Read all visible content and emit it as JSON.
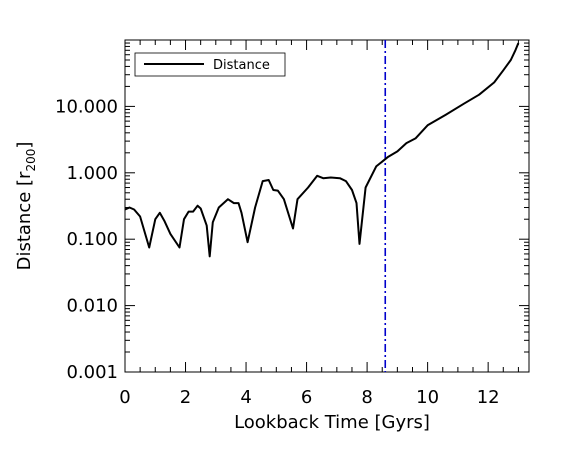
{
  "chart_data": {
    "type": "line",
    "xlabel": "Lookback Time [Gyrs]",
    "ylabel": {
      "main": "Distance [r",
      "sub": "200",
      "close": "]"
    },
    "xlim": [
      0,
      13.35
    ],
    "ylim": [
      0.001,
      100
    ],
    "yscale": "log",
    "xticks": [
      0,
      2,
      4,
      6,
      8,
      10,
      12
    ],
    "xtick_labels": [
      "0",
      "2",
      "4",
      "6",
      "8",
      "10",
      "12"
    ],
    "yticks": [
      0.001,
      0.01,
      0.1,
      1,
      10
    ],
    "ytick_labels": [
      "0.001",
      "0.010",
      "0.100",
      "1.000",
      "10.000"
    ],
    "grid": false,
    "legend": {
      "position": "top-left",
      "entries": [
        "Distance"
      ]
    },
    "series": [
      {
        "name": "Distance",
        "color": "#000000",
        "style": "solid",
        "x": [
          0.0,
          0.15,
          0.3,
          0.5,
          0.8,
          1.0,
          1.15,
          1.3,
          1.5,
          1.8,
          1.95,
          2.1,
          2.25,
          2.4,
          2.5,
          2.7,
          2.8,
          2.9,
          3.1,
          3.4,
          3.6,
          3.75,
          3.85,
          4.05,
          4.3,
          4.55,
          4.75,
          4.9,
          5.05,
          5.25,
          5.55,
          5.7,
          6.05,
          6.35,
          6.55,
          6.8,
          7.1,
          7.3,
          7.5,
          7.65,
          7.75,
          7.95,
          8.3,
          8.7,
          9.0,
          9.3,
          9.6,
          10.0,
          10.6,
          11.2,
          11.7,
          12.2,
          12.5,
          12.75,
          12.9,
          13.0
        ],
        "y": [
          0.28,
          0.3,
          0.28,
          0.22,
          0.075,
          0.2,
          0.25,
          0.19,
          0.12,
          0.075,
          0.2,
          0.26,
          0.26,
          0.32,
          0.29,
          0.16,
          0.055,
          0.18,
          0.3,
          0.4,
          0.35,
          0.35,
          0.25,
          0.09,
          0.3,
          0.75,
          0.78,
          0.55,
          0.54,
          0.4,
          0.145,
          0.4,
          0.6,
          0.9,
          0.83,
          0.85,
          0.83,
          0.75,
          0.55,
          0.35,
          0.085,
          0.6,
          1.25,
          1.75,
          2.1,
          2.8,
          3.3,
          5.2,
          7.5,
          11.0,
          15.0,
          23.0,
          35.0,
          50.0,
          70.0,
          90.0
        ]
      }
    ],
    "reference_lines": [
      {
        "axis": "x",
        "value": 8.6,
        "color": "#0000cc",
        "style": "dash-dot"
      }
    ]
  }
}
